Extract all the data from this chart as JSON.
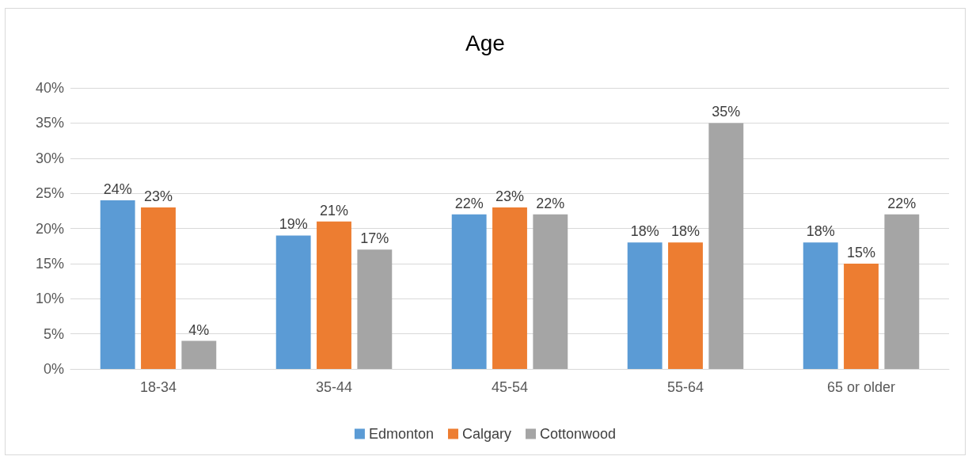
{
  "chart_data": {
    "type": "bar",
    "title": "Age",
    "categories": [
      "18-34",
      "35-44",
      "45-54",
      "55-64",
      "65 or older"
    ],
    "series": [
      {
        "name": "Edmonton",
        "color": "#5b9bd5",
        "values": [
          24,
          19,
          22,
          18,
          18
        ],
        "value_labels": [
          "24%",
          "19%",
          "22%",
          "18%",
          "18%"
        ]
      },
      {
        "name": "Calgary",
        "color": "#ed7d31",
        "values": [
          23,
          21,
          23,
          18,
          15
        ],
        "value_labels": [
          "23%",
          "21%",
          "23%",
          "18%",
          "15%"
        ]
      },
      {
        "name": "Cottonwood",
        "color": "#a5a5a5",
        "values": [
          4,
          17,
          22,
          35,
          22
        ],
        "value_labels": [
          "4%",
          "17%",
          "22%",
          "35%",
          "22%"
        ]
      }
    ],
    "ylim": [
      0,
      40
    ],
    "yticks": [
      {
        "value": 0,
        "label": "0%"
      },
      {
        "value": 5,
        "label": "5%"
      },
      {
        "value": 10,
        "label": "10%"
      },
      {
        "value": 15,
        "label": "15%"
      },
      {
        "value": 20,
        "label": "20%"
      },
      {
        "value": 25,
        "label": "25%"
      },
      {
        "value": 30,
        "label": "30%"
      },
      {
        "value": 35,
        "label": "35%"
      },
      {
        "value": 40,
        "label": "40%"
      }
    ],
    "grid": "y",
    "legend": "bottom"
  }
}
